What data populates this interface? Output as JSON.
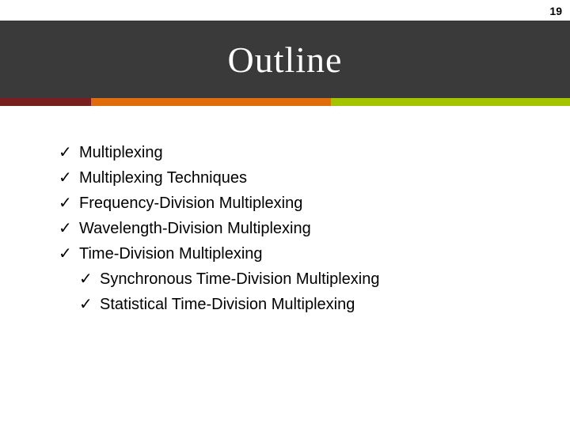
{
  "page_number": "19",
  "title": "Outline",
  "accent_segments": [
    {
      "color": "#7a1f1f",
      "width_pct": 16
    },
    {
      "color": "#e36c0a",
      "width_pct": 42
    },
    {
      "color": "#a4c400",
      "width_pct": 42
    }
  ],
  "colors": {
    "header_bg": "#3a3a3a",
    "title_color": "#ffffff",
    "page_bg": "#ffffff",
    "text_color": "#000000"
  },
  "typography": {
    "title_font": "Georgia, serif",
    "title_size_pt": 34,
    "body_font": "Arial, sans-serif",
    "body_size_pt": 15
  },
  "bullet_glyph": "✓",
  "items": [
    {
      "text": "Multiplexing",
      "children": []
    },
    {
      "text": "Multiplexing Techniques",
      "children": []
    },
    {
      "text": "Frequency-Division Multiplexing",
      "children": []
    },
    {
      "text": "Wavelength-Division Multiplexing",
      "children": []
    },
    {
      "text": "Time-Division Multiplexing",
      "children": [
        {
          "text": "Synchronous Time-Division Multiplexing"
        },
        {
          "text": "Statistical Time-Division Multiplexing"
        }
      ]
    }
  ]
}
